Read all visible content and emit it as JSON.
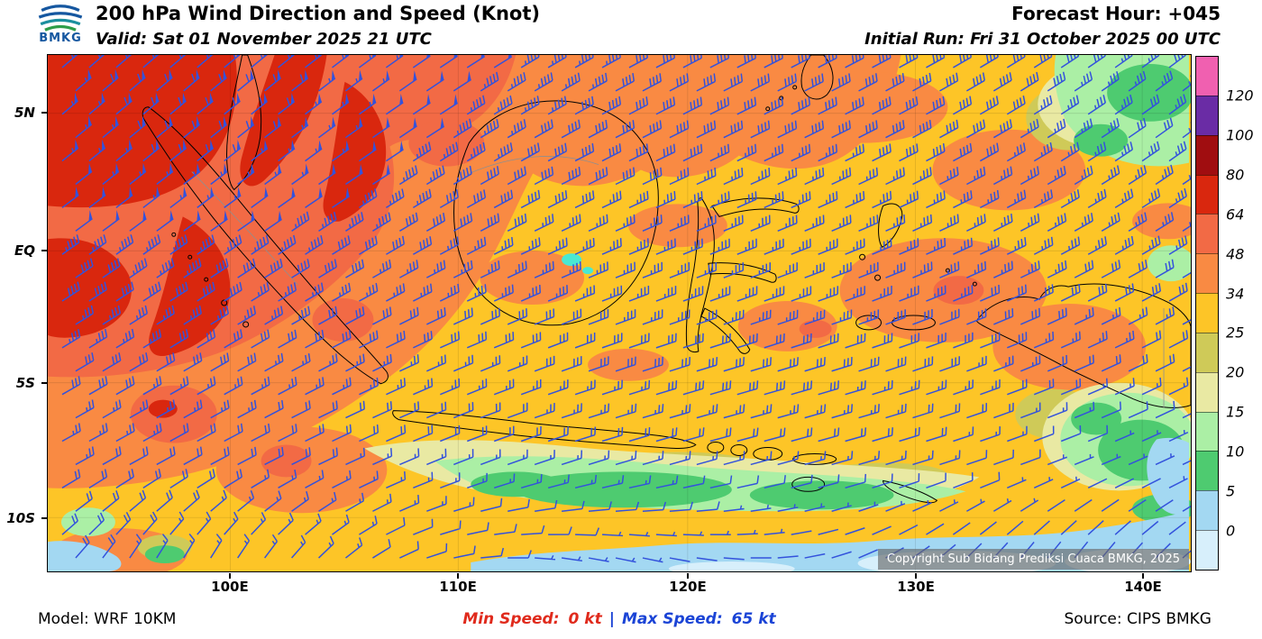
{
  "header": {
    "logo_text": "BMKG",
    "title": "200 hPa Wind Direction and Speed (Knot)",
    "valid": "Valid: Sat 01 November 2025 21 UTC",
    "forecast_hour": "Forecast Hour: +045",
    "initial_run": "Initial Run: Fri 31 October 2025 00 UTC"
  },
  "map": {
    "x_ticks": [
      "100E",
      "110E",
      "120E",
      "130E",
      "140E"
    ],
    "y_ticks": [
      "5N",
      "EQ",
      "5S",
      "10S"
    ],
    "copyright": "Copyright Sub Bidang Prediksi Cuaca BMKG, 2025"
  },
  "colorbar": {
    "labels": [
      "120",
      "100",
      "80",
      "64",
      "48",
      "34",
      "25",
      "20",
      "15",
      "10",
      "5",
      "0"
    ],
    "colors_top_to_bottom": [
      "#f060b0",
      "#6a2ca5",
      "#a00d10",
      "#d9270e",
      "#f26a45",
      "#f98a43",
      "#fdc527",
      "#cfca58",
      "#e9e9a3",
      "#abefa5",
      "#4ecb70",
      "#a3d8f2",
      "#d7effb"
    ]
  },
  "footer": {
    "model": "Model: WRF 10KM",
    "min_speed_label": "Min Speed:",
    "min_speed_value": "0 kt",
    "separator": "|",
    "max_speed_label": "Max Speed:",
    "max_speed_value": "65 kt",
    "source": "Source: CIPS BMKG"
  },
  "palette": {
    "barb": "#3352dc",
    "cyan": "#49e8d2",
    "minred": "#e02a1c",
    "maxblue": "#1b44d6",
    "logo_blue": "#1557a0",
    "logo_green": "#2e9e49"
  }
}
